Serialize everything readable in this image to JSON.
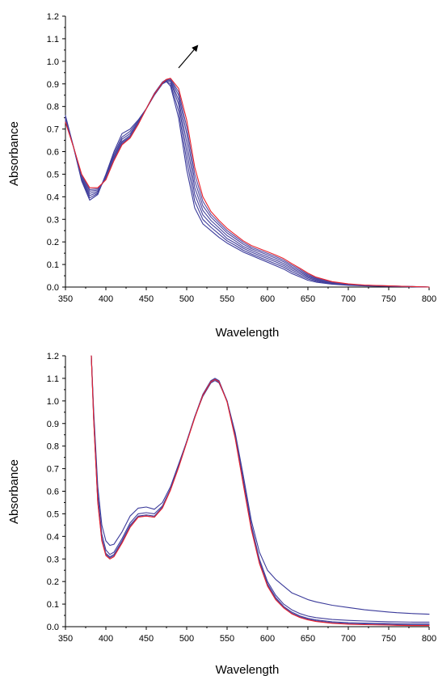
{
  "chart_data": [
    {
      "type": "line",
      "xlabel": "Wavelength",
      "ylabel": "Absorbance",
      "xlim": [
        350,
        800
      ],
      "ylim": [
        0.0,
        1.2
      ],
      "xticks": [
        "350",
        "400",
        "450",
        "500",
        "550",
        "600",
        "650",
        "700",
        "750",
        "800"
      ],
      "yticks": [
        "0.0",
        "0.1",
        "0.2",
        "0.3",
        "0.4",
        "0.5",
        "0.6",
        "0.7",
        "0.8",
        "0.9",
        "1.0",
        "1.1",
        "1.2"
      ],
      "grid": false,
      "annotation": "arrow pointing up-right near the peak, indicating increasing trend",
      "colors": {
        "initial": "#3a3a9a",
        "final": "#e8202a"
      },
      "x": [
        350,
        360,
        370,
        380,
        390,
        400,
        410,
        420,
        430,
        440,
        450,
        460,
        470,
        475,
        480,
        490,
        500,
        510,
        520,
        530,
        540,
        550,
        560,
        570,
        580,
        590,
        600,
        610,
        620,
        630,
        640,
        650,
        660,
        680,
        700,
        720,
        750,
        800
      ],
      "series": [
        {
          "values": [
            0.76,
            0.62,
            0.47,
            0.385,
            0.41,
            0.5,
            0.6,
            0.68,
            0.7,
            0.74,
            0.79,
            0.85,
            0.9,
            0.91,
            0.89,
            0.75,
            0.52,
            0.35,
            0.28,
            0.25,
            0.22,
            0.195,
            0.175,
            0.155,
            0.14,
            0.125,
            0.11,
            0.095,
            0.08,
            0.06,
            0.045,
            0.03,
            0.022,
            0.013,
            0.008,
            0.005,
            0.003,
            0.0
          ]
        },
        {
          "values": [
            0.755,
            0.62,
            0.475,
            0.395,
            0.415,
            0.495,
            0.59,
            0.665,
            0.69,
            0.735,
            0.79,
            0.852,
            0.902,
            0.912,
            0.9,
            0.78,
            0.56,
            0.38,
            0.3,
            0.265,
            0.235,
            0.205,
            0.185,
            0.163,
            0.147,
            0.132,
            0.118,
            0.103,
            0.088,
            0.068,
            0.052,
            0.036,
            0.026,
            0.015,
            0.009,
            0.006,
            0.004,
            0.0
          ]
        },
        {
          "values": [
            0.75,
            0.62,
            0.48,
            0.405,
            0.42,
            0.49,
            0.58,
            0.655,
            0.68,
            0.73,
            0.79,
            0.855,
            0.905,
            0.915,
            0.91,
            0.81,
            0.6,
            0.41,
            0.32,
            0.28,
            0.25,
            0.215,
            0.195,
            0.172,
            0.155,
            0.14,
            0.126,
            0.112,
            0.096,
            0.076,
            0.059,
            0.042,
            0.03,
            0.017,
            0.01,
            0.007,
            0.004,
            0.0
          ]
        },
        {
          "values": [
            0.745,
            0.62,
            0.485,
            0.415,
            0.425,
            0.485,
            0.575,
            0.645,
            0.672,
            0.728,
            0.79,
            0.857,
            0.907,
            0.918,
            0.915,
            0.83,
            0.64,
            0.44,
            0.34,
            0.295,
            0.262,
            0.228,
            0.205,
            0.18,
            0.163,
            0.148,
            0.134,
            0.12,
            0.104,
            0.083,
            0.066,
            0.047,
            0.034,
            0.019,
            0.011,
            0.007,
            0.004,
            0.0
          ]
        },
        {
          "values": [
            0.74,
            0.62,
            0.49,
            0.425,
            0.43,
            0.48,
            0.57,
            0.64,
            0.666,
            0.725,
            0.79,
            0.858,
            0.908,
            0.92,
            0.92,
            0.85,
            0.68,
            0.47,
            0.36,
            0.31,
            0.275,
            0.24,
            0.215,
            0.19,
            0.17,
            0.156,
            0.142,
            0.128,
            0.112,
            0.09,
            0.072,
            0.052,
            0.037,
            0.021,
            0.012,
            0.008,
            0.005,
            0.0
          ]
        },
        {
          "values": [
            0.735,
            0.62,
            0.495,
            0.432,
            0.435,
            0.478,
            0.565,
            0.635,
            0.662,
            0.722,
            0.79,
            0.858,
            0.907,
            0.92,
            0.922,
            0.865,
            0.71,
            0.5,
            0.38,
            0.322,
            0.286,
            0.25,
            0.224,
            0.198,
            0.177,
            0.163,
            0.149,
            0.135,
            0.119,
            0.097,
            0.078,
            0.057,
            0.04,
            0.022,
            0.013,
            0.008,
            0.005,
            0.0
          ]
        },
        {
          "values": [
            0.73,
            0.62,
            0.5,
            0.44,
            0.44,
            0.475,
            0.56,
            0.63,
            0.66,
            0.72,
            0.79,
            0.855,
            0.905,
            0.92,
            0.925,
            0.88,
            0.74,
            0.53,
            0.4,
            0.335,
            0.295,
            0.26,
            0.232,
            0.205,
            0.184,
            0.17,
            0.156,
            0.142,
            0.126,
            0.104,
            0.084,
            0.062,
            0.044,
            0.024,
            0.014,
            0.009,
            0.005,
            0.0
          ]
        }
      ]
    },
    {
      "type": "line",
      "xlabel": "Wavelength",
      "ylabel": "Absorbance",
      "xlim": [
        350,
        800
      ],
      "ylim": [
        0.0,
        1.2
      ],
      "xticks": [
        "350",
        "400",
        "450",
        "500",
        "550",
        "600",
        "650",
        "700",
        "750",
        "800"
      ],
      "yticks": [
        "0.0",
        "0.1",
        "0.2",
        "0.3",
        "0.4",
        "0.5",
        "0.6",
        "0.7",
        "0.8",
        "0.9",
        "1.0",
        "1.1",
        "1.2"
      ],
      "grid": false,
      "colors": {
        "initial": "#3a3a9a",
        "final": "#e8202a"
      },
      "x": [
        382,
        385,
        390,
        395,
        400,
        405,
        410,
        420,
        430,
        440,
        450,
        460,
        470,
        480,
        490,
        500,
        510,
        520,
        530,
        535,
        540,
        550,
        560,
        570,
        580,
        590,
        600,
        610,
        620,
        630,
        640,
        650,
        660,
        680,
        700,
        720,
        750,
        760,
        780,
        800
      ],
      "series": [
        {
          "values": [
            1.2,
            0.95,
            0.62,
            0.45,
            0.38,
            0.36,
            0.365,
            0.42,
            0.49,
            0.525,
            0.53,
            0.52,
            0.55,
            0.62,
            0.72,
            0.82,
            0.93,
            1.02,
            1.08,
            1.09,
            1.08,
            1.0,
            0.86,
            0.67,
            0.47,
            0.33,
            0.25,
            0.21,
            0.18,
            0.15,
            0.135,
            0.12,
            0.11,
            0.095,
            0.085,
            0.075,
            0.065,
            0.062,
            0.058,
            0.055
          ]
        },
        {
          "values": [
            1.2,
            0.93,
            0.58,
            0.41,
            0.34,
            0.32,
            0.33,
            0.39,
            0.46,
            0.5,
            0.505,
            0.5,
            0.535,
            0.61,
            0.71,
            0.82,
            0.93,
            1.025,
            1.085,
            1.095,
            1.085,
            1.0,
            0.85,
            0.65,
            0.45,
            0.3,
            0.2,
            0.14,
            0.1,
            0.075,
            0.058,
            0.047,
            0.04,
            0.032,
            0.028,
            0.025,
            0.022,
            0.021,
            0.02,
            0.02
          ]
        },
        {
          "values": [
            1.2,
            0.92,
            0.56,
            0.39,
            0.325,
            0.31,
            0.32,
            0.38,
            0.45,
            0.49,
            0.495,
            0.49,
            0.53,
            0.61,
            0.71,
            0.82,
            0.93,
            1.03,
            1.09,
            1.1,
            1.09,
            1.0,
            0.845,
            0.64,
            0.44,
            0.29,
            0.19,
            0.13,
            0.09,
            0.065,
            0.048,
            0.037,
            0.03,
            0.022,
            0.018,
            0.016,
            0.014,
            0.013,
            0.012,
            0.012
          ]
        },
        {
          "values": [
            1.2,
            0.915,
            0.555,
            0.385,
            0.32,
            0.305,
            0.315,
            0.375,
            0.445,
            0.487,
            0.49,
            0.485,
            0.527,
            0.607,
            0.707,
            0.818,
            0.928,
            1.028,
            1.088,
            1.098,
            1.088,
            0.998,
            0.84,
            0.635,
            0.435,
            0.285,
            0.185,
            0.125,
            0.087,
            0.06,
            0.044,
            0.033,
            0.026,
            0.018,
            0.014,
            0.012,
            0.01,
            0.009,
            0.008,
            0.008
          ]
        },
        {
          "values": [
            1.2,
            0.91,
            0.55,
            0.38,
            0.315,
            0.3,
            0.31,
            0.37,
            0.44,
            0.485,
            0.49,
            0.485,
            0.525,
            0.605,
            0.705,
            0.815,
            0.925,
            1.025,
            1.085,
            1.095,
            1.085,
            0.995,
            0.835,
            0.63,
            0.43,
            0.28,
            0.18,
            0.12,
            0.083,
            0.057,
            0.041,
            0.03,
            0.023,
            0.015,
            0.011,
            0.009,
            0.007,
            0.006,
            0.005,
            0.005
          ]
        }
      ]
    }
  ]
}
